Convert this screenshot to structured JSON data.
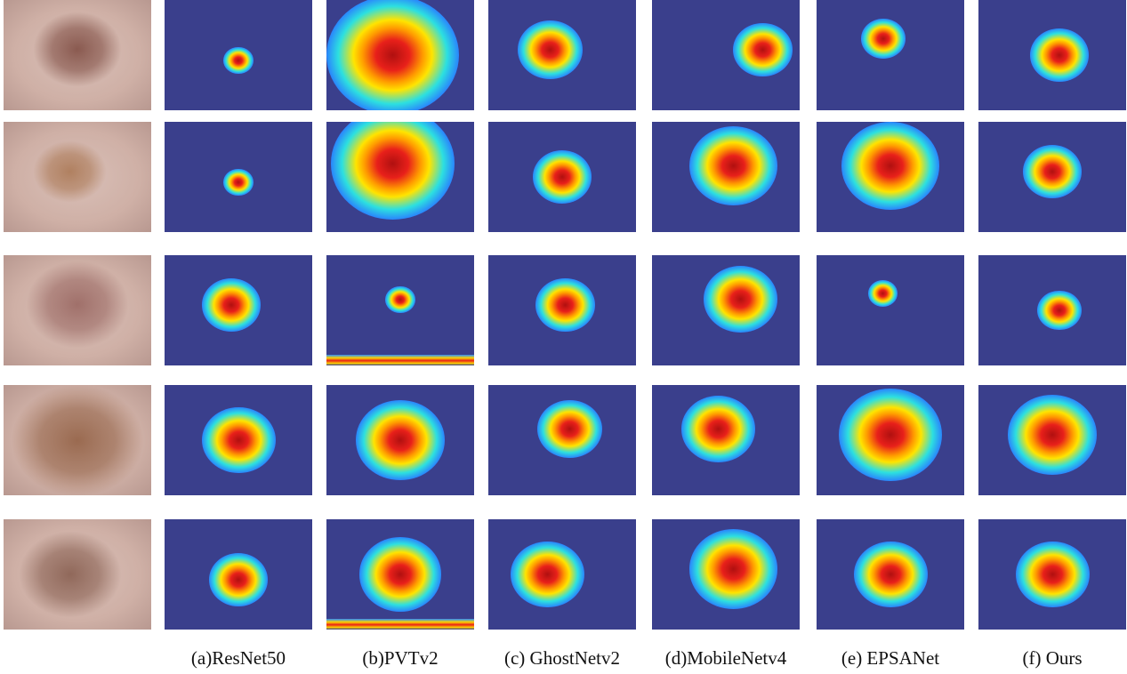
{
  "figure": {
    "column_labels": [
      "",
      "(a)ResNet50",
      "(b)PVTv2",
      "(c) GhostNetv2",
      "(d)MobileNetv4",
      "(e) EPSANet",
      "(f) Ours"
    ],
    "rows": 5,
    "colormap": "jet",
    "colors": {
      "background_blue": "#3a3f8c",
      "hot": "#e8201a",
      "warm": "#ffd400",
      "cool": "#2ce0e0"
    }
  }
}
